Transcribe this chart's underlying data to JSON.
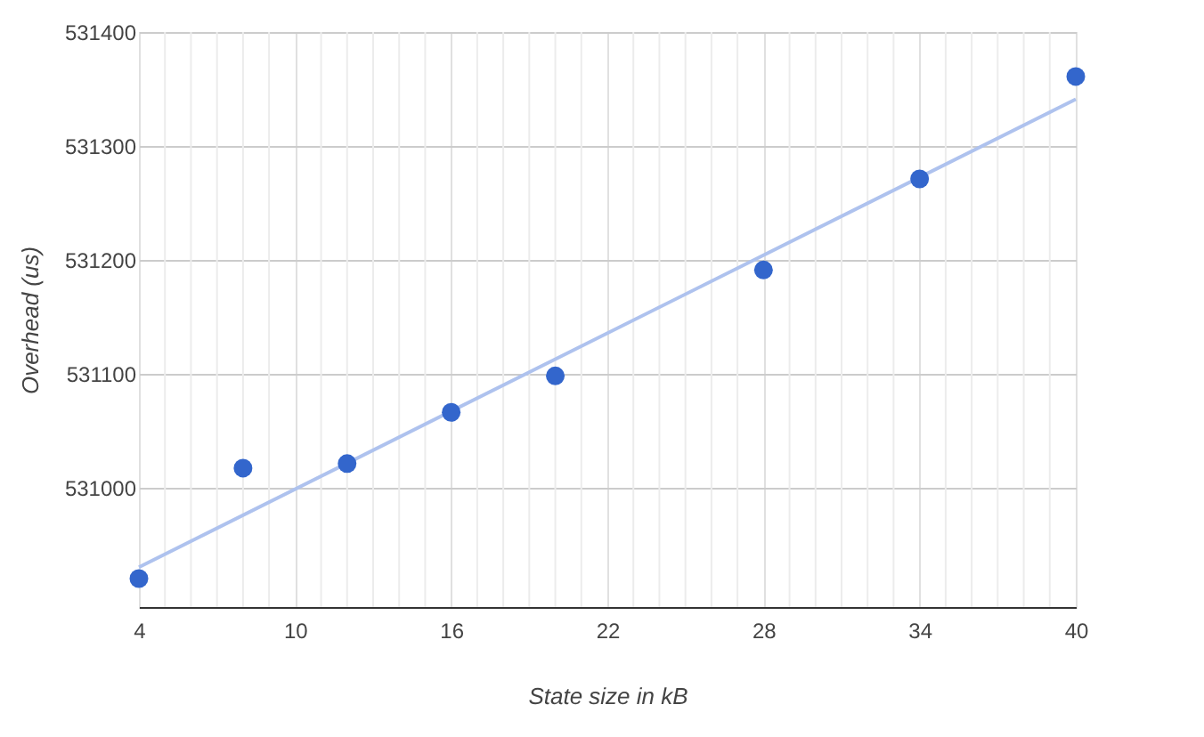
{
  "chart_data": {
    "type": "scatter",
    "xlabel": "State size in kB",
    "ylabel": "Overhead (us)",
    "x": [
      4,
      8,
      12,
      16,
      20,
      28,
      34,
      40
    ],
    "series": [
      {
        "color": "#3366cc",
        "values": [
          530920,
          531017,
          531021,
          531066,
          531098,
          531191,
          531271,
          531361
        ]
      },
      {
        "type": "line",
        "color": "#aec2ee",
        "marker": "none",
        "line_style": "solid",
        "x": [
          4,
          40
        ],
        "values": [
          530930,
          531341
        ]
      }
    ],
    "xlim": [
      4,
      40
    ],
    "ylim": [
      530895,
      531400
    ],
    "xticks": [
      4,
      {
        "value": 5,
        "label": null
      },
      {
        "value": 6,
        "label": null
      },
      {
        "value": 7,
        "label": null
      },
      {
        "value": 8,
        "label": null
      },
      {
        "value": 9,
        "label": null
      },
      10,
      {
        "value": 11,
        "label": null
      },
      {
        "value": 12,
        "label": null
      },
      {
        "value": 13,
        "label": null
      },
      {
        "value": 14,
        "label": null
      },
      {
        "value": 15,
        "label": null
      },
      16,
      {
        "value": 17,
        "label": null
      },
      {
        "value": 18,
        "label": null
      },
      {
        "value": 19,
        "label": null
      },
      {
        "value": 20,
        "label": null
      },
      {
        "value": 21,
        "label": null
      },
      22,
      {
        "value": 23,
        "label": null
      },
      {
        "value": 24,
        "label": null
      },
      {
        "value": 25,
        "label": null
      },
      {
        "value": 26,
        "label": null
      },
      {
        "value": 27,
        "label": null
      },
      28,
      {
        "value": 29,
        "label": null
      },
      {
        "value": 30,
        "label": null
      },
      {
        "value": 31,
        "label": null
      },
      {
        "value": 32,
        "label": null
      },
      {
        "value": 33,
        "label": null
      },
      34,
      {
        "value": 35,
        "label": null
      },
      {
        "value": 36,
        "label": null
      },
      {
        "value": 37,
        "label": null
      },
      {
        "value": 38,
        "label": null
      },
      {
        "value": 39,
        "label": null
      },
      40
    ],
    "yticks": [
      531000,
      531100,
      531200,
      531300,
      531400
    ],
    "grid": true,
    "marker": "circle"
  }
}
